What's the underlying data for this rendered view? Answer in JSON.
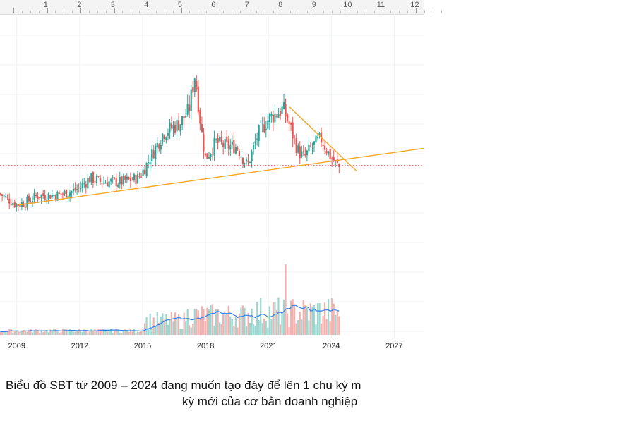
{
  "ruler": {
    "labels": [
      "1",
      "2",
      "3",
      "4",
      "5",
      "6",
      "7",
      "8",
      "9",
      "10",
      "11",
      "12"
    ]
  },
  "caption": {
    "line1": "Biểu đồ SBT từ 2009 – 2024 đang muốn tạo đáy để lên 1 chu kỳ m",
    "line2": "kỳ mới của cơ bản doanh nghiệp"
  },
  "colors": {
    "up": "#26a69a",
    "down": "#ef5350",
    "trendline": "#f5a623",
    "ma_line": "#2f80ed",
    "ref_line": "#e53935",
    "grid": "#eef0f3",
    "axis_text": "#222222"
  },
  "chart_data": {
    "type": "candlestick",
    "x_ticks": [
      "2009",
      "2012",
      "2015",
      "2018",
      "2021",
      "2024",
      "2027"
    ],
    "xlim": [
      2008.2,
      2028.4
    ],
    "ylim": [
      0,
      100
    ],
    "grid": true,
    "price_path": [
      [
        2008.2,
        34
      ],
      [
        2008.6,
        31
      ],
      [
        2009.0,
        28.5
      ],
      [
        2009.4,
        29.5
      ],
      [
        2010.0,
        33
      ],
      [
        2011.0,
        33.5
      ],
      [
        2011.6,
        35
      ],
      [
        2012.0,
        37
      ],
      [
        2012.5,
        42
      ],
      [
        2013.0,
        40
      ],
      [
        2014.0,
        40
      ],
      [
        2014.8,
        42
      ],
      [
        2015.1,
        47
      ],
      [
        2015.5,
        55
      ],
      [
        2016.0,
        65
      ],
      [
        2016.8,
        70
      ],
      [
        2017.2,
        76
      ],
      [
        2017.5,
        95
      ],
      [
        2017.8,
        66
      ],
      [
        2018.0,
        52
      ],
      [
        2018.5,
        60
      ],
      [
        2019.0,
        58
      ],
      [
        2019.5,
        58
      ],
      [
        2020.0,
        48
      ],
      [
        2020.5,
        64
      ],
      [
        2021.0,
        72
      ],
      [
        2021.7,
        77
      ],
      [
        2022.0,
        69
      ],
      [
        2022.4,
        56
      ],
      [
        2022.7,
        52
      ],
      [
        2023.0,
        57
      ],
      [
        2023.5,
        62
      ],
      [
        2024.0,
        52
      ],
      [
        2024.4,
        47
      ]
    ],
    "reference_level": 48.3,
    "support_trendline": {
      "from": [
        2009.1,
        28.3
      ],
      "to": [
        2028.4,
        57
      ]
    },
    "resistance_trendline": {
      "from": [
        2022.0,
        78
      ],
      "to": [
        2025.2,
        45.5
      ]
    },
    "volume_spike_year": 2021.8,
    "volume_average_line": true
  }
}
